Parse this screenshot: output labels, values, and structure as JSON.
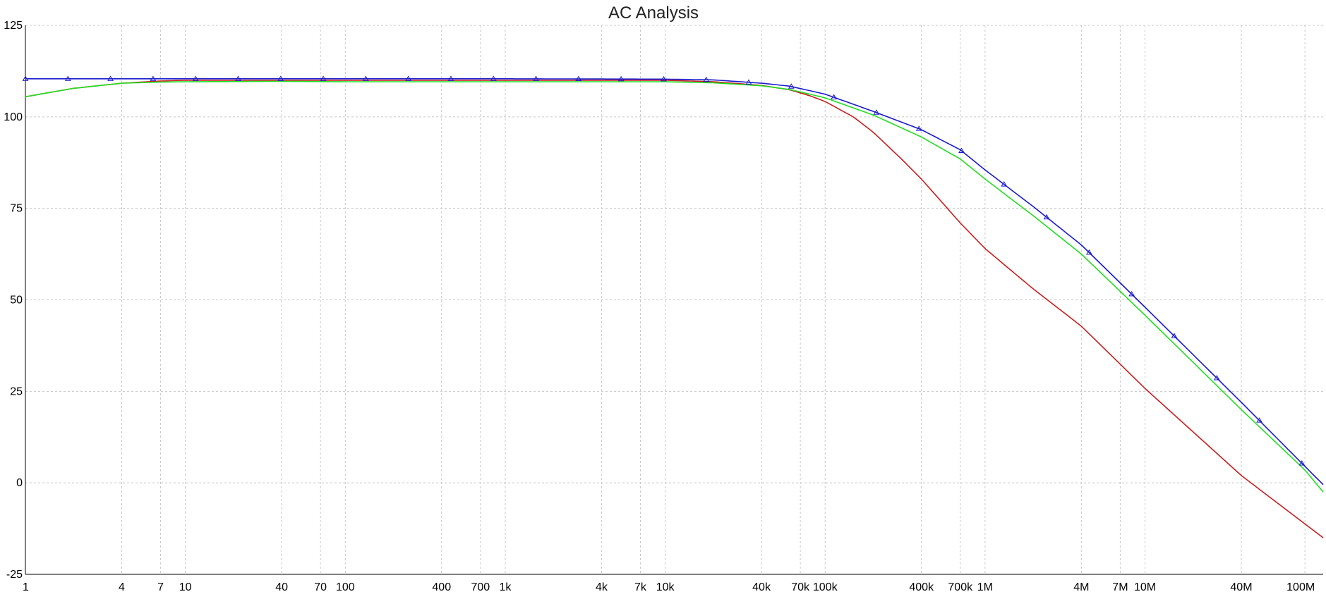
{
  "chart_data": {
    "type": "line",
    "title": "AC Analysis",
    "xlabel": "",
    "ylabel": "",
    "xscale": "log",
    "xlim": [
      1,
      130000000
    ],
    "ylim": [
      -25,
      125
    ],
    "grid": true,
    "y_ticks": [
      {
        "value": -25,
        "label": "-25"
      },
      {
        "value": 0,
        "label": "0"
      },
      {
        "value": 25,
        "label": "25"
      },
      {
        "value": 50,
        "label": "50"
      },
      {
        "value": 75,
        "label": "75"
      },
      {
        "value": 100,
        "label": "100"
      },
      {
        "value": 125,
        "label": "125"
      }
    ],
    "x_ticks": [
      {
        "value": 1,
        "label": "1"
      },
      {
        "value": 4,
        "label": "4"
      },
      {
        "value": 7,
        "label": "7"
      },
      {
        "value": 10,
        "label": "10"
      },
      {
        "value": 40,
        "label": "40"
      },
      {
        "value": 70,
        "label": "70"
      },
      {
        "value": 100,
        "label": "100"
      },
      {
        "value": 400,
        "label": "400"
      },
      {
        "value": 700,
        "label": "700"
      },
      {
        "value": 1000,
        "label": "1k"
      },
      {
        "value": 4000,
        "label": "4k"
      },
      {
        "value": 7000,
        "label": "7k"
      },
      {
        "value": 10000,
        "label": "10k"
      },
      {
        "value": 40000,
        "label": "40k"
      },
      {
        "value": 70000,
        "label": "70k"
      },
      {
        "value": 100000,
        "label": "100k"
      },
      {
        "value": 400000,
        "label": "400k"
      },
      {
        "value": 700000,
        "label": "700k"
      },
      {
        "value": 1000000,
        "label": "1M"
      },
      {
        "value": 4000000,
        "label": "4M"
      },
      {
        "value": 7000000,
        "label": "7M"
      },
      {
        "value": 10000000,
        "label": "10M"
      },
      {
        "value": 40000000,
        "label": "40M"
      },
      {
        "value": 100000000,
        "label": "100M"
      }
    ],
    "series": [
      {
        "color": "#c81e1e",
        "marker": "none",
        "x": [
          1,
          2,
          4,
          7,
          10,
          40,
          100,
          1000,
          10000,
          20000,
          40000,
          60000,
          80000,
          100000,
          150000,
          200000,
          300000,
          400000,
          700000,
          1000000,
          2000000,
          4000000,
          10000000,
          40000000,
          130000000
        ],
        "y": [
          105.5,
          107.8,
          109.2,
          109.8,
          110,
          110,
          110,
          110,
          110,
          109.6,
          108.6,
          107.4,
          105.8,
          104.2,
          100,
          95.8,
          88.5,
          83,
          71,
          64,
          53,
          42.8,
          25.8,
          2,
          -15
        ]
      },
      {
        "color": "#22dd22",
        "marker": "none",
        "x": [
          1,
          2,
          4,
          7,
          10,
          40,
          100,
          1000,
          10000,
          20000,
          40000,
          60000,
          100000,
          200000,
          400000,
          700000,
          1000000,
          2000000,
          4000000,
          10000000,
          40000000,
          100000000,
          130000000
        ],
        "y": [
          105.5,
          107.8,
          109.2,
          109.5,
          109.6,
          109.7,
          109.6,
          109.6,
          109.6,
          109.3,
          108.5,
          107.5,
          105.2,
          100.5,
          94.5,
          88.5,
          83,
          73,
          62.5,
          45.8,
          20,
          3.5,
          -2.5
        ]
      },
      {
        "color": "#1a1acd",
        "marker": "triangle",
        "x": [
          1,
          2,
          4,
          7,
          10,
          40,
          100,
          1000,
          10000,
          20000,
          40000,
          60000,
          100000,
          200000,
          400000,
          700000,
          1000000,
          2000000,
          4000000,
          10000000,
          40000000,
          100000000,
          130000000
        ],
        "y": [
          110.4,
          110.4,
          110.4,
          110.4,
          110.4,
          110.4,
          110.4,
          110.4,
          110.3,
          110.1,
          109.2,
          108.4,
          106.2,
          101.5,
          96.5,
          91,
          85.5,
          75.5,
          65,
          48,
          22,
          4.5,
          -0.5
        ]
      }
    ]
  }
}
